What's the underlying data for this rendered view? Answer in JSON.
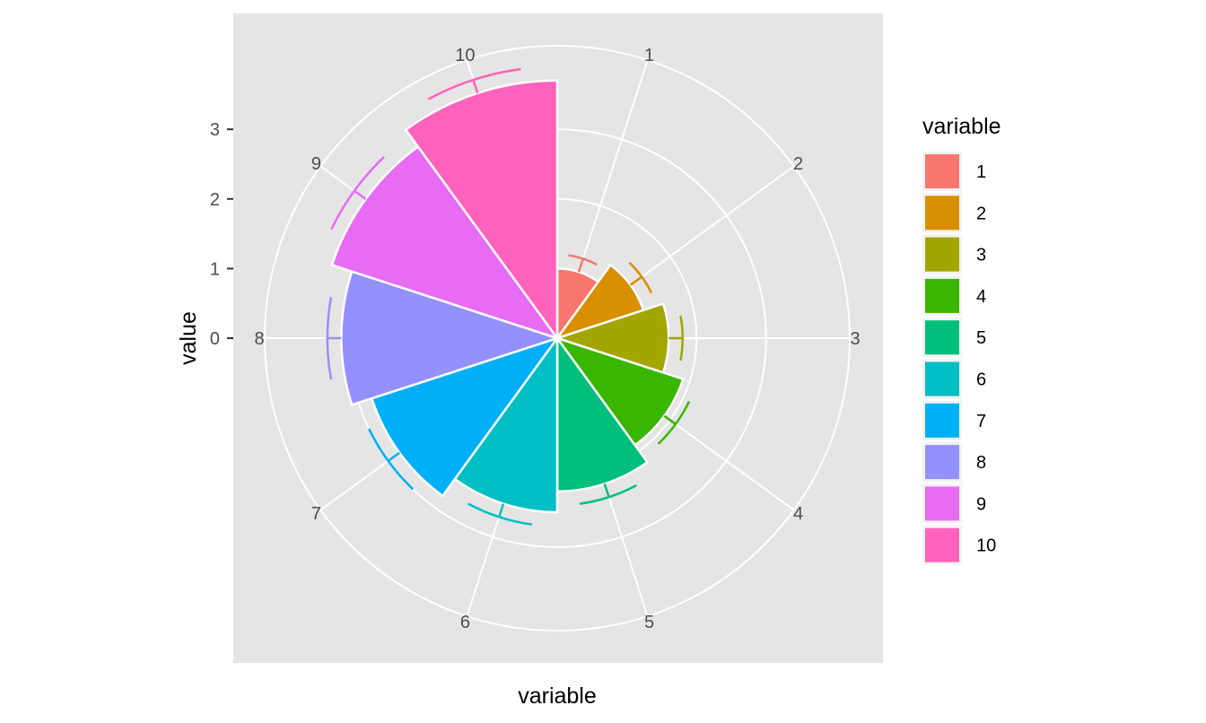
{
  "chart_data": {
    "type": "bar",
    "coord": "polar",
    "categories": [
      "1",
      "2",
      "3",
      "4",
      "5",
      "6",
      "7",
      "8",
      "9",
      "10"
    ],
    "values": [
      1.0,
      1.3,
      1.6,
      1.9,
      2.2,
      2.5,
      2.8,
      3.1,
      3.4,
      3.7
    ],
    "error_upper": [
      1.2,
      1.5,
      1.8,
      2.1,
      2.4,
      2.7,
      3.0,
      3.3,
      3.6,
      3.9
    ],
    "colors": [
      "#F8766D",
      "#D89000",
      "#A3A500",
      "#39B600",
      "#00BF7D",
      "#00BFC4",
      "#00B0F6",
      "#9590FF",
      "#E76BF3",
      "#FF62BC"
    ],
    "xlabel": "variable",
    "ylabel": "value",
    "y_ticks": [
      "0",
      "1",
      "2",
      "3"
    ],
    "ylim": [
      0,
      4.2
    ],
    "legend_title": "variable",
    "legend_position": "right",
    "panel_background": "#E5E5E5",
    "grid": true
  }
}
